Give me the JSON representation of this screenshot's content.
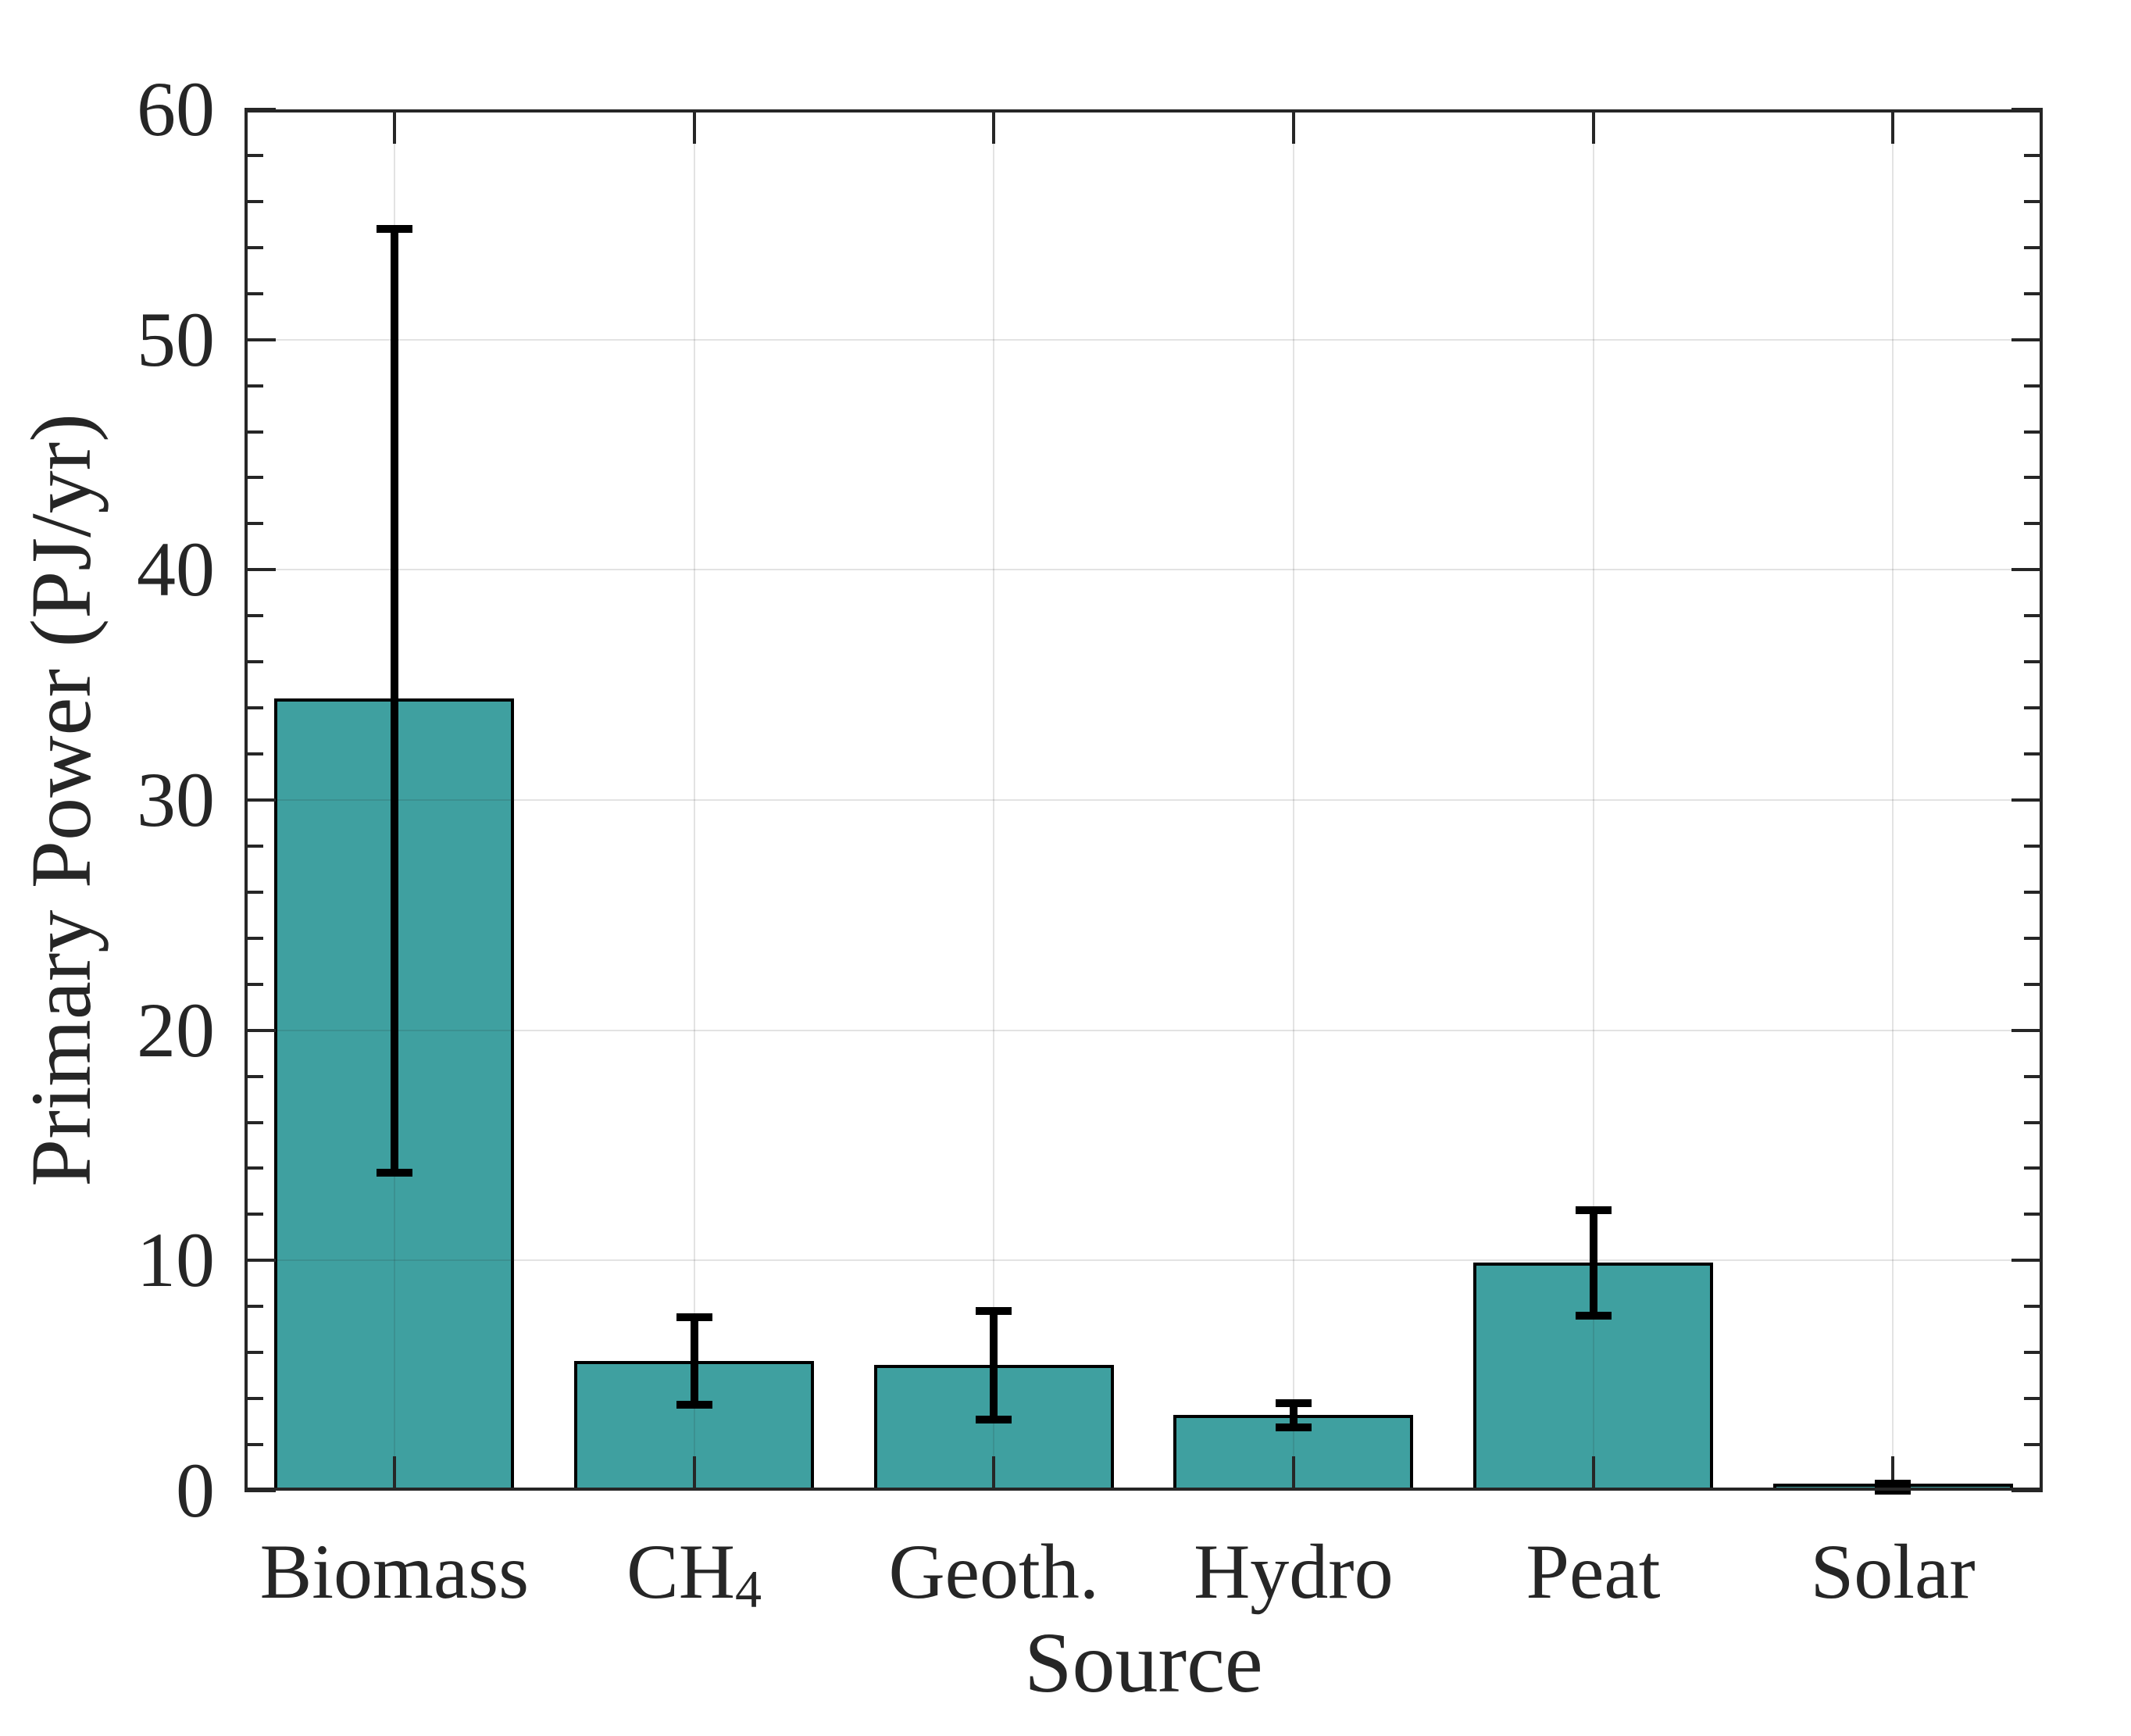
{
  "chart_data": {
    "type": "bar",
    "title": "",
    "xlabel": "Source",
    "ylabel": "Primary Power (PJ/yr)",
    "ylim": [
      0,
      60
    ],
    "yticks": [
      0,
      10,
      20,
      30,
      40,
      50,
      60
    ],
    "ytick_minor_step": 2,
    "grid": true,
    "legend": "none",
    "background_color": "#FFFFFF",
    "bar_color": "#3FA0A0",
    "bar_edge_color": "#000000",
    "error_bar_color": "#000000",
    "axis_color": "#262626",
    "grid_color_rgba": "rgba(38,38,38,0.13)",
    "bar_width_fraction": 0.8,
    "categories": [
      {
        "label": "Biomass"
      },
      {
        "label": "CH",
        "sub": "4"
      },
      {
        "label": "Geoth."
      },
      {
        "label": "Hydro"
      },
      {
        "label": "Peat"
      },
      {
        "label": "Solar"
      }
    ],
    "series": [
      {
        "name": "Primary Power",
        "values": [
          34.4,
          5.65,
          5.45,
          3.3,
          9.9,
          0.1
        ],
        "error_low": [
          13.8,
          3.75,
          3.1,
          2.75,
          7.6,
          0.0
        ],
        "error_high": [
          54.8,
          7.55,
          7.8,
          3.8,
          12.2,
          0.3
        ]
      }
    ]
  }
}
